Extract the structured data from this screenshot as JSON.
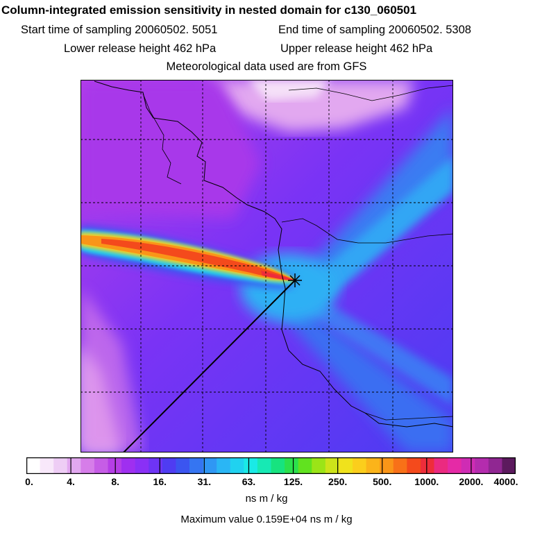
{
  "title": "Column-integrated emission sensitivity in nested domain for c130_060501",
  "start_label": "Start time of sampling 20060502.  5051",
  "end_label": "End time of sampling 20060502.  5308",
  "lower_label": "Lower release height  462 hPa",
  "upper_label": "Upper release height  462 hPa",
  "met_label": "Meteorological data used are from GFS",
  "colorbar": {
    "ticks": [
      "0.",
      "4.",
      "8.",
      "16.",
      "31.",
      "63.",
      "125.",
      "250.",
      "500.",
      "1000.",
      "2000.",
      "4000."
    ],
    "colors": [
      "#ffffff",
      "#f8e8fa",
      "#eecdf5",
      "#e2a8f0",
      "#d67de9",
      "#c65de6",
      "#b53ee6",
      "#9f2ff0",
      "#8a30f6",
      "#6e34f5",
      "#4f3cf2",
      "#3b55f0",
      "#3575f2",
      "#2f97f4",
      "#2ab6f5",
      "#20d2f0",
      "#1aeae6",
      "#17e9b4",
      "#17e37f",
      "#2be04c",
      "#61e21f",
      "#9be417",
      "#cde31a",
      "#f0e21c",
      "#fbce1c",
      "#fbb41a",
      "#fa9518",
      "#f87118",
      "#f44a1c",
      "#ee2d3a",
      "#eb2a80",
      "#e52aa6",
      "#cf2cb4",
      "#b42cae",
      "#902792",
      "#5c1a5e"
    ]
  },
  "units": "ns m / kg",
  "max_value": "Maximum value  0.159E+04 ns m / kg",
  "marker": {
    "type": "receptor",
    "symbol": "star"
  }
}
